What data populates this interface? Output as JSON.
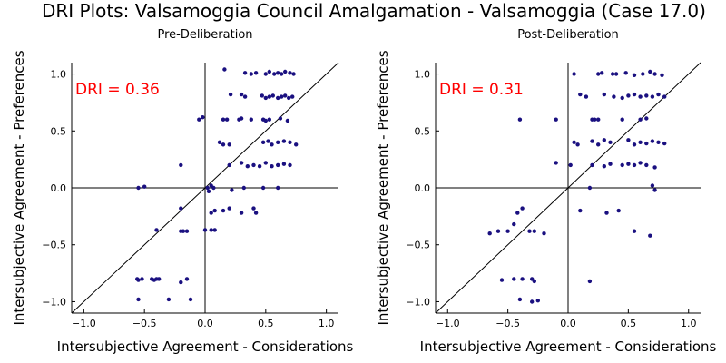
{
  "title": "DRI Plots: Valsamoggia Council Amalgamation - Valsamoggia (Case 17.0)",
  "colors": {
    "point": "#1a1080",
    "dri_label": "#ff0000",
    "axis": "#000000"
  },
  "chart_data": [
    {
      "type": "scatter",
      "title": "Pre-Deliberation",
      "xlabel": "Intersubjective Agreement - Considerations",
      "ylabel": "Intersubjective Agreement - Preferences",
      "xlim": [
        -1.1,
        1.1
      ],
      "ylim": [
        -1.1,
        1.1
      ],
      "xticks": [
        -1.0,
        -0.5,
        0.0,
        0.5,
        1.0
      ],
      "yticks": [
        -1.0,
        -0.5,
        0.0,
        0.5,
        1.0
      ],
      "xtick_labels": [
        "−1.0",
        "−0.5",
        "0.0",
        "0.5",
        "1.0"
      ],
      "ytick_labels": [
        "−1.0",
        "−0.5",
        "0.0",
        "0.5",
        "1.0"
      ],
      "annotation": "DRI = 0.36",
      "points": [
        [
          -0.55,
          0.0
        ],
        [
          -0.5,
          0.01
        ],
        [
          -0.4,
          -0.37
        ],
        [
          -0.2,
          0.2
        ],
        [
          -0.2,
          -0.18
        ],
        [
          -0.2,
          -0.38
        ],
        [
          -0.18,
          -0.38
        ],
        [
          -0.15,
          -0.38
        ],
        [
          -0.05,
          0.6
        ],
        [
          -0.02,
          0.62
        ],
        [
          0.02,
          0.0
        ],
        [
          0.05,
          0.02
        ],
        [
          0.07,
          0.0
        ],
        [
          0.03,
          -0.03
        ],
        [
          0.05,
          -0.22
        ],
        [
          0.08,
          -0.2
        ],
        [
          0.0,
          -0.37
        ],
        [
          0.05,
          -0.37
        ],
        [
          0.08,
          -0.37
        ],
        [
          -0.56,
          -0.8
        ],
        [
          -0.55,
          -0.81
        ],
        [
          -0.52,
          -0.8
        ],
        [
          -0.44,
          -0.8
        ],
        [
          -0.42,
          -0.81
        ],
        [
          -0.4,
          -0.8
        ],
        [
          -0.38,
          -0.8
        ],
        [
          -0.15,
          -0.8
        ],
        [
          -0.2,
          -0.83
        ],
        [
          -0.55,
          -0.98
        ],
        [
          -0.3,
          -0.98
        ],
        [
          -0.12,
          -0.98
        ],
        [
          0.16,
          1.04
        ],
        [
          0.21,
          0.82
        ],
        [
          0.33,
          1.01
        ],
        [
          0.38,
          1.0
        ],
        [
          0.42,
          1.01
        ],
        [
          0.5,
          1.0
        ],
        [
          0.53,
          1.02
        ],
        [
          0.57,
          1.0
        ],
        [
          0.6,
          1.01
        ],
        [
          0.63,
          1.0
        ],
        [
          0.66,
          1.02
        ],
        [
          0.7,
          1.01
        ],
        [
          0.73,
          1.0
        ],
        [
          0.47,
          0.81
        ],
        [
          0.5,
          0.79
        ],
        [
          0.53,
          0.8
        ],
        [
          0.56,
          0.81
        ],
        [
          0.6,
          0.79
        ],
        [
          0.63,
          0.8
        ],
        [
          0.66,
          0.81
        ],
        [
          0.69,
          0.79
        ],
        [
          0.72,
          0.8
        ],
        [
          0.3,
          0.82
        ],
        [
          0.33,
          0.8
        ],
        [
          0.15,
          0.6
        ],
        [
          0.18,
          0.6
        ],
        [
          0.28,
          0.6
        ],
        [
          0.3,
          0.61
        ],
        [
          0.38,
          0.6
        ],
        [
          0.48,
          0.6
        ],
        [
          0.5,
          0.59
        ],
        [
          0.53,
          0.6
        ],
        [
          0.62,
          0.61
        ],
        [
          0.68,
          0.59
        ],
        [
          0.12,
          0.4
        ],
        [
          0.15,
          0.38
        ],
        [
          0.2,
          0.38
        ],
        [
          0.48,
          0.4
        ],
        [
          0.52,
          0.41
        ],
        [
          0.55,
          0.38
        ],
        [
          0.6,
          0.4
        ],
        [
          0.65,
          0.41
        ],
        [
          0.7,
          0.4
        ],
        [
          0.75,
          0.38
        ],
        [
          0.2,
          0.2
        ],
        [
          0.3,
          0.22
        ],
        [
          0.35,
          0.19
        ],
        [
          0.4,
          0.2
        ],
        [
          0.45,
          0.19
        ],
        [
          0.5,
          0.22
        ],
        [
          0.55,
          0.19
        ],
        [
          0.6,
          0.2
        ],
        [
          0.65,
          0.21
        ],
        [
          0.7,
          0.2
        ],
        [
          0.22,
          -0.02
        ],
        [
          0.32,
          0.0
        ],
        [
          0.48,
          0.0
        ],
        [
          0.6,
          0.0
        ],
        [
          0.15,
          -0.2
        ],
        [
          0.2,
          -0.18
        ],
        [
          0.3,
          -0.22
        ],
        [
          0.4,
          -0.18
        ],
        [
          0.42,
          -0.22
        ]
      ]
    },
    {
      "type": "scatter",
      "title": "Post-Deliberation",
      "xlabel": "Intersubjective Agreement - Considerations",
      "ylabel": "Intersubjective Agreement - Preferences",
      "xlim": [
        -1.1,
        1.1
      ],
      "ylim": [
        -1.1,
        1.1
      ],
      "xticks": [
        -1.0,
        -0.5,
        0.0,
        0.5,
        1.0
      ],
      "yticks": [
        -1.0,
        -0.5,
        0.0,
        0.5,
        1.0
      ],
      "xtick_labels": [
        "−1.0",
        "−0.5",
        "0.0",
        "0.5",
        "1.0"
      ],
      "ytick_labels": [
        "−1.0",
        "−0.5",
        "0.0",
        "0.5",
        "1.0"
      ],
      "annotation": "DRI = 0.31",
      "points": [
        [
          -0.4,
          0.6
        ],
        [
          -0.1,
          0.6
        ],
        [
          -0.65,
          -0.4
        ],
        [
          -0.58,
          -0.38
        ],
        [
          -0.5,
          -0.38
        ],
        [
          -0.45,
          -0.32
        ],
        [
          -0.42,
          -0.22
        ],
        [
          -0.38,
          -0.18
        ],
        [
          -0.32,
          -0.38
        ],
        [
          -0.28,
          -0.38
        ],
        [
          -0.2,
          -0.4
        ],
        [
          -0.55,
          -0.81
        ],
        [
          -0.45,
          -0.8
        ],
        [
          -0.38,
          -0.8
        ],
        [
          -0.3,
          -0.8
        ],
        [
          -0.28,
          -0.82
        ],
        [
          -0.4,
          -0.98
        ],
        [
          -0.3,
          -1.0
        ],
        [
          -0.25,
          -0.99
        ],
        [
          -0.1,
          0.22
        ],
        [
          0.05,
          0.4
        ],
        [
          0.08,
          0.38
        ],
        [
          0.02,
          0.2
        ],
        [
          0.05,
          1.0
        ],
        [
          0.25,
          1.0
        ],
        [
          0.28,
          1.01
        ],
        [
          0.37,
          1.0
        ],
        [
          0.4,
          1.0
        ],
        [
          0.48,
          1.01
        ],
        [
          0.55,
          0.99
        ],
        [
          0.62,
          1.0
        ],
        [
          0.68,
          1.02
        ],
        [
          0.72,
          1.0
        ],
        [
          0.78,
          0.99
        ],
        [
          0.1,
          0.82
        ],
        [
          0.15,
          0.8
        ],
        [
          0.3,
          0.82
        ],
        [
          0.38,
          0.8
        ],
        [
          0.45,
          0.79
        ],
        [
          0.5,
          0.81
        ],
        [
          0.55,
          0.82
        ],
        [
          0.6,
          0.8
        ],
        [
          0.65,
          0.81
        ],
        [
          0.7,
          0.8
        ],
        [
          0.75,
          0.82
        ],
        [
          0.8,
          0.8
        ],
        [
          0.2,
          0.6
        ],
        [
          0.22,
          0.6
        ],
        [
          0.25,
          0.6
        ],
        [
          0.45,
          0.6
        ],
        [
          0.6,
          0.6
        ],
        [
          0.65,
          0.61
        ],
        [
          0.2,
          0.41
        ],
        [
          0.25,
          0.38
        ],
        [
          0.3,
          0.42
        ],
        [
          0.35,
          0.4
        ],
        [
          0.5,
          0.42
        ],
        [
          0.55,
          0.38
        ],
        [
          0.6,
          0.4
        ],
        [
          0.65,
          0.39
        ],
        [
          0.7,
          0.41
        ],
        [
          0.75,
          0.4
        ],
        [
          0.8,
          0.39
        ],
        [
          0.2,
          0.2
        ],
        [
          0.3,
          0.19
        ],
        [
          0.35,
          0.21
        ],
        [
          0.45,
          0.2
        ],
        [
          0.5,
          0.21
        ],
        [
          0.55,
          0.2
        ],
        [
          0.6,
          0.22
        ],
        [
          0.65,
          0.2
        ],
        [
          0.72,
          0.18
        ],
        [
          0.18,
          0.0
        ],
        [
          0.7,
          0.02
        ],
        [
          0.72,
          -0.02
        ],
        [
          0.1,
          -0.2
        ],
        [
          0.32,
          -0.22
        ],
        [
          0.42,
          -0.2
        ],
        [
          0.55,
          -0.38
        ],
        [
          0.68,
          -0.42
        ],
        [
          0.18,
          -0.82
        ]
      ]
    }
  ]
}
